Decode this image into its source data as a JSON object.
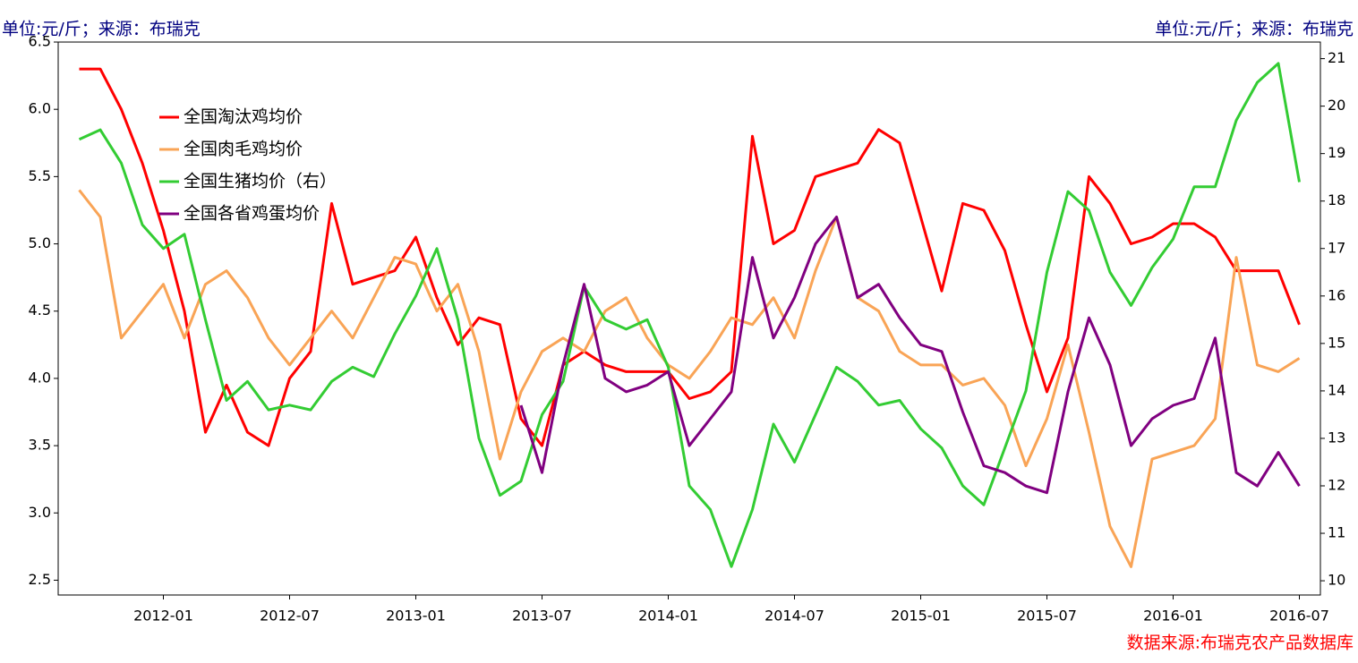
{
  "chart_data": {
    "type": "line",
    "title_left": "单位:元/斤；来源：布瑞克",
    "title_right": "单位:元/斤；来源：布瑞克",
    "source": "数据来源:布瑞克农产品数据库",
    "x": [
      "2011-09",
      "2011-10",
      "2011-11",
      "2011-12",
      "2012-01",
      "2012-02",
      "2012-03",
      "2012-04",
      "2012-05",
      "2012-06",
      "2012-07",
      "2012-08",
      "2012-09",
      "2012-10",
      "2012-11",
      "2012-12",
      "2013-01",
      "2013-02",
      "2013-03",
      "2013-04",
      "2013-05",
      "2013-06",
      "2013-07",
      "2013-08",
      "2013-09",
      "2013-10",
      "2013-11",
      "2013-12",
      "2014-01",
      "2014-02",
      "2014-03",
      "2014-04",
      "2014-05",
      "2014-06",
      "2014-07",
      "2014-08",
      "2014-09",
      "2014-10",
      "2014-11",
      "2014-12",
      "2015-01",
      "2015-02",
      "2015-03",
      "2015-04",
      "2015-05",
      "2015-06",
      "2015-07",
      "2015-08",
      "2015-09",
      "2015-10",
      "2015-11",
      "2015-12",
      "2016-01",
      "2016-02",
      "2016-03",
      "2016-04",
      "2016-05",
      "2016-06",
      "2016-07"
    ],
    "xlim": [
      "2011-08",
      "2016-08"
    ],
    "xticks": [
      "2012-01",
      "2012-07",
      "2013-01",
      "2013-07",
      "2014-01",
      "2014-07",
      "2015-01",
      "2015-07",
      "2016-01",
      "2016-07"
    ],
    "ylim": [
      2.39,
      6.5
    ],
    "yticks": [
      2.5,
      {
        "value": 3,
        "label": "3.0"
      },
      3.5,
      {
        "value": 4,
        "label": "4.0"
      },
      4.5,
      {
        "value": 5,
        "label": "5.0"
      },
      5.5,
      {
        "value": 6,
        "label": "6.0"
      },
      6.5
    ],
    "y2lim": [
      9.7,
      21.35
    ],
    "y2ticks": [
      10,
      11,
      12,
      13,
      14,
      15,
      16,
      17,
      18,
      19,
      20,
      21
    ],
    "legend": "upper left",
    "series": [
      {
        "name": "全国淘汰鸡均价",
        "color": "#ff0000",
        "values": [
          6.3,
          6.3,
          6.0,
          5.6,
          5.1,
          4.5,
          3.6,
          3.95,
          3.6,
          3.5,
          4.0,
          4.2,
          5.3,
          4.7,
          4.75,
          4.8,
          5.05,
          4.6,
          4.25,
          4.45,
          4.4,
          3.7,
          3.5,
          4.1,
          4.2,
          4.1,
          4.05,
          4.05,
          4.05,
          3.85,
          3.9,
          4.05,
          5.8,
          5.0,
          5.1,
          5.5,
          5.55,
          5.6,
          5.85,
          5.75,
          5.2,
          4.65,
          5.3,
          5.25,
          4.95,
          4.4,
          3.9,
          4.3,
          5.5,
          5.3,
          5.0,
          5.05,
          5.15,
          5.15,
          5.05,
          4.8,
          4.8,
          4.8,
          4.4
        ]
      },
      {
        "name": "全国肉毛鸡均价",
        "color": "#f9a456",
        "values": [
          5.4,
          5.2,
          4.3,
          4.5,
          4.7,
          4.3,
          4.7,
          4.8,
          4.6,
          4.3,
          4.1,
          4.3,
          4.5,
          4.3,
          4.6,
          4.9,
          4.85,
          4.5,
          4.7,
          4.2,
          3.4,
          3.9,
          4.2,
          4.3,
          4.2,
          4.5,
          4.6,
          4.3,
          4.1,
          4.0,
          4.2,
          4.45,
          4.4,
          4.6,
          4.3,
          4.8,
          5.2,
          4.6,
          4.5,
          4.2,
          4.1,
          4.1,
          3.95,
          4.0,
          3.8,
          3.35,
          3.7,
          4.25,
          3.6,
          2.9,
          2.6,
          3.4,
          3.45,
          3.5,
          3.7,
          4.9,
          4.1,
          4.05,
          4.15
        ]
      },
      {
        "name": "全国生猪均价（右）",
        "color": "#33cc33",
        "axis": "y2",
        "values": [
          19.3,
          19.5,
          18.8,
          17.5,
          17.0,
          17.3,
          15.5,
          13.8,
          14.2,
          13.6,
          13.7,
          13.6,
          14.2,
          14.5,
          14.3,
          15.2,
          16.0,
          17.0,
          15.5,
          13.0,
          11.8,
          12.1,
          13.5,
          14.2,
          16.2,
          15.5,
          15.3,
          15.5,
          14.5,
          12.0,
          11.5,
          10.3,
          11.5,
          13.3,
          12.5,
          13.5,
          14.5,
          14.2,
          13.7,
          13.8,
          13.2,
          12.8,
          12.0,
          11.6,
          12.8,
          14.0,
          16.5,
          18.2,
          17.8,
          16.5,
          15.8,
          16.6,
          17.2,
          18.3,
          18.3,
          19.7,
          20.5,
          20.9,
          18.4
        ]
      },
      {
        "name": "全国各省鸡蛋均价",
        "color": "#800080",
        "values": [
          null,
          null,
          null,
          null,
          null,
          null,
          null,
          null,
          null,
          null,
          null,
          null,
          null,
          null,
          null,
          null,
          null,
          null,
          null,
          null,
          null,
          3.8,
          3.3,
          4.1,
          4.7,
          4.0,
          3.9,
          3.95,
          4.05,
          3.5,
          3.7,
          3.9,
          4.9,
          4.3,
          4.6,
          5.0,
          5.2,
          4.6,
          4.7,
          4.45,
          4.25,
          4.2,
          3.75,
          3.35,
          3.3,
          3.2,
          3.15,
          3.9,
          4.45,
          4.1,
          3.5,
          3.7,
          3.8,
          3.85,
          4.3,
          3.3,
          3.2,
          3.45,
          3.2
        ]
      }
    ]
  }
}
